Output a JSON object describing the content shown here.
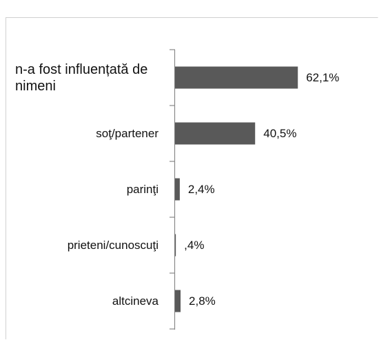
{
  "chart_data": {
    "type": "bar",
    "orientation": "horizontal",
    "categories": [
      "n-a fost influențată de nimeni",
      "soţ/partener",
      "parinţi",
      "prieteni/cunoscuţi",
      "altcineva"
    ],
    "values": [
      62.1,
      40.5,
      2.4,
      0.4,
      2.8
    ],
    "value_labels": [
      "62,1%",
      "40,5%",
      "2,4%",
      ",4%",
      "2,8%"
    ],
    "color": "#595959"
  }
}
